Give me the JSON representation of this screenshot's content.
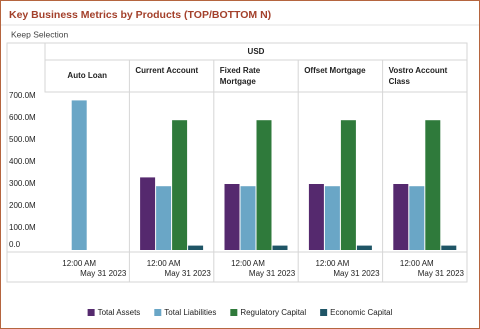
{
  "chart_data": {
    "type": "bar",
    "title": "Key Business Metrics by Products (TOP/BOTTOM N)",
    "subtitle": "Keep Selection",
    "column_header": "USD",
    "categories": [
      "Auto Loan",
      "Current Account",
      "Fixed Rate Mortgage",
      "Offset Mortgage",
      "Vostro Account Class"
    ],
    "x_labels": [
      {
        "time": "12:00 AM",
        "date": "May 31 2023"
      },
      {
        "time": "12:00 AM",
        "date": "May 31 2023"
      },
      {
        "time": "12:00 AM",
        "date": "May 31 2023"
      },
      {
        "time": "12:00 AM",
        "date": "May 31 2023"
      },
      {
        "time": "12:00 AM",
        "date": "May 31 2023"
      }
    ],
    "series": [
      {
        "name": "Total Assets",
        "color": "#55296e",
        "values": [
          null,
          330000000,
          300000000,
          300000000,
          300000000
        ]
      },
      {
        "name": "Total Liabilities",
        "color": "#6aa6c6",
        "values": [
          680000000,
          290000000,
          290000000,
          290000000,
          290000000
        ]
      },
      {
        "name": "Regulatory Capital",
        "color": "#2f7a3b",
        "values": [
          null,
          590000000,
          590000000,
          590000000,
          590000000
        ]
      },
      {
        "name": "Economic Capital",
        "color": "#1f5566",
        "values": [
          null,
          20000000,
          20000000,
          20000000,
          20000000
        ]
      }
    ],
    "ylim": [
      0,
      700000000
    ],
    "yticks": [
      {
        "value": 0,
        "label": "0.0"
      },
      {
        "value": 100000000,
        "label": "100.0M"
      },
      {
        "value": 200000000,
        "label": "200.0M"
      },
      {
        "value": 300000000,
        "label": "300.0M"
      },
      {
        "value": 400000000,
        "label": "400.0M"
      },
      {
        "value": 500000000,
        "label": "500.0M"
      },
      {
        "value": 600000000,
        "label": "600.0M"
      },
      {
        "value": 700000000,
        "label": "700.0M"
      }
    ],
    "grid": false,
    "legend": "bottom"
  }
}
